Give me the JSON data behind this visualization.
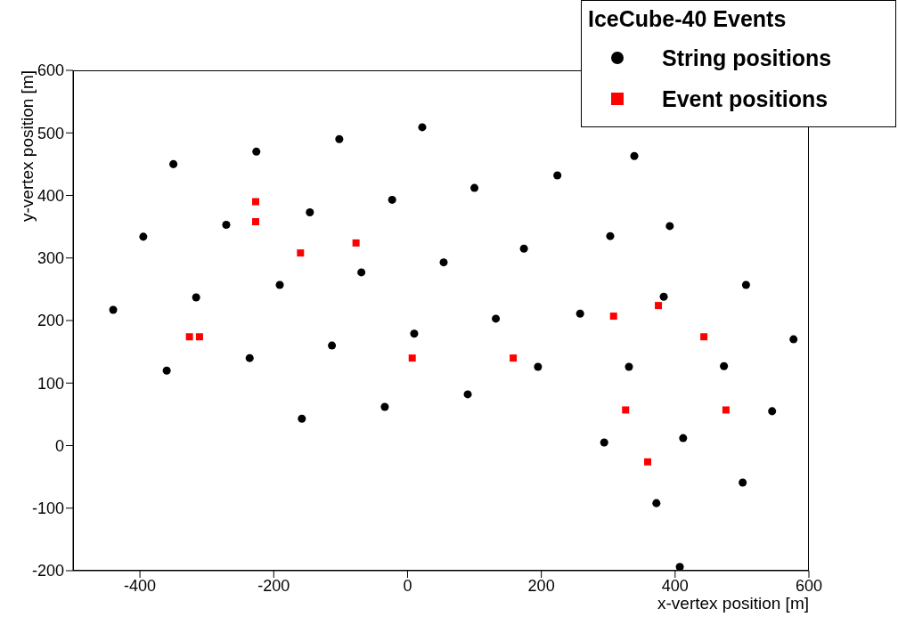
{
  "chart_data": {
    "type": "scatter",
    "xlabel": "x-vertex position [m]",
    "ylabel": "y-vertex position [m]",
    "legend_title": "IceCube-40 Events",
    "legend": "top right",
    "grid": false,
    "xlim": [
      -500,
      600
    ],
    "xticks": [
      -400,
      -200,
      0,
      200,
      400,
      600
    ],
    "ylim": [
      -200,
      600
    ],
    "yticks": [
      -200,
      -100,
      0,
      100,
      200,
      300,
      400,
      500,
      600
    ],
    "series": [
      {
        "name": "String positions",
        "color": "#000000",
        "marker": "circle",
        "x": [
          -440,
          -395,
          -350,
          -360,
          -316,
          -271,
          -226,
          -236,
          -191,
          -146,
          -102,
          -158,
          -113,
          -69,
          -23,
          22,
          -34,
          10,
          54,
          100,
          224,
          339,
          90,
          132,
          174,
          195,
          258,
          303,
          392,
          383,
          294,
          331,
          412,
          372,
          407,
          473,
          506,
          501,
          545,
          577
        ],
        "values": [
          217,
          334,
          450,
          120,
          237,
          353,
          470,
          140,
          257,
          373,
          490,
          43,
          160,
          277,
          393,
          509,
          62,
          179,
          293,
          412,
          432,
          463,
          82,
          203,
          315,
          126,
          211,
          335,
          351,
          238,
          5,
          126,
          12,
          -92,
          -194,
          127,
          257,
          -59,
          55,
          170
        ]
      },
      {
        "name": "Event positions",
        "color": "#ff0000",
        "marker": "square",
        "x": [
          -227,
          -227,
          -160,
          -77,
          -326,
          -311,
          7,
          158,
          308,
          375,
          443,
          326,
          359,
          476
        ],
        "values": [
          390,
          358,
          308,
          324,
          174,
          174,
          140,
          140,
          207,
          224,
          174,
          57,
          -26,
          57
        ]
      }
    ]
  }
}
